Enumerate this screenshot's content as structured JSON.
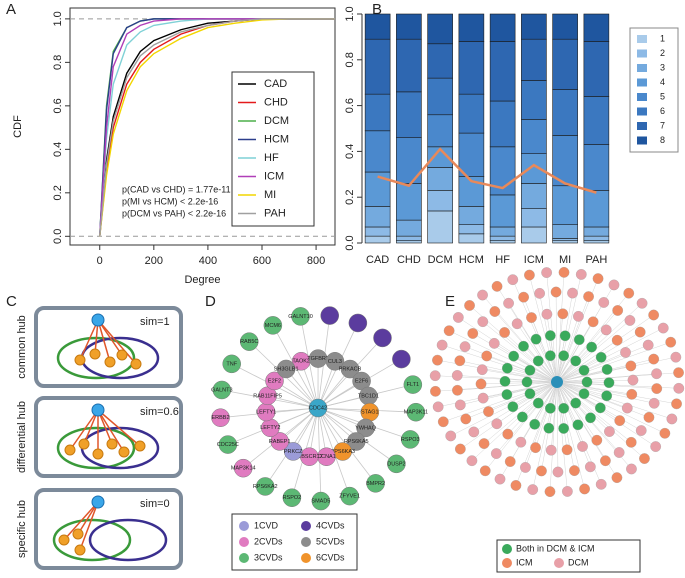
{
  "panel_labels": [
    "A",
    "B",
    "C",
    "D",
    "E"
  ],
  "chart_data": [
    {
      "type": "line",
      "xlabel": "Degree",
      "ylabel": "CDF",
      "x": [
        0,
        25,
        50,
        100,
        150,
        200,
        300,
        400,
        500,
        600,
        700,
        800,
        870
      ],
      "xlim": [
        -110,
        870
      ],
      "xticks": [
        0,
        200,
        400,
        600,
        800
      ],
      "ylim": [
        -0.04,
        1.05
      ],
      "yticks": [
        {
          "value": 0,
          "label": "0.0"
        },
        0.2,
        0.4,
        0.6,
        0.8,
        {
          "value": 1,
          "label": "1.0"
        }
      ],
      "hlines": [
        0,
        1
      ],
      "legend": "right",
      "series": [
        {
          "name": "CAD",
          "color": "#000000",
          "values": [
            0,
            0.35,
            0.55,
            0.75,
            0.85,
            0.9,
            0.95,
            0.98,
            0.99,
            1,
            1,
            1,
            1
          ]
        },
        {
          "name": "CHD",
          "color": "#e41a1c",
          "values": [
            0,
            0.3,
            0.5,
            0.7,
            0.8,
            0.86,
            0.93,
            0.97,
            0.99,
            1,
            1,
            1,
            1
          ]
        },
        {
          "name": "DCM",
          "color": "#4daf4a",
          "values": [
            0,
            0.6,
            0.85,
            0.96,
            0.99,
            1,
            1,
            1,
            1,
            1,
            1,
            1,
            1
          ]
        },
        {
          "name": "HCM",
          "color": "#2c3e8c",
          "values": [
            0,
            0.58,
            0.84,
            0.96,
            0.99,
            1,
            1,
            1,
            1,
            1,
            1,
            1,
            1
          ]
        },
        {
          "name": "HF",
          "color": "#7fd1d6",
          "values": [
            0,
            0.45,
            0.7,
            0.88,
            0.94,
            0.97,
            0.99,
            1,
            1,
            1,
            1,
            1,
            1
          ]
        },
        {
          "name": "ICM",
          "color": "#b03fb8",
          "values": [
            0,
            0.5,
            0.78,
            0.93,
            0.97,
            0.99,
            1,
            1,
            1,
            1,
            1,
            1,
            1
          ]
        },
        {
          "name": "MI",
          "color": "#f2d600",
          "values": [
            0,
            0.28,
            0.47,
            0.67,
            0.78,
            0.84,
            0.91,
            0.96,
            0.98,
            0.995,
            1,
            1,
            1
          ]
        },
        {
          "name": "PAH",
          "color": "#a0a0a0",
          "values": [
            0,
            0.33,
            0.53,
            0.73,
            0.83,
            0.88,
            0.94,
            0.97,
            0.99,
            1,
            1,
            1,
            1
          ]
        }
      ],
      "annotations": [
        "p(CAD vs CHD) = 1.77e-11",
        "p(MI vs HCM) < 2.2e-16",
        "p(DCM vs PAH) < 2.2e-16"
      ]
    },
    {
      "type": "stacked_bar",
      "categories": [
        "CAD",
        "CHD",
        "DCM",
        "HCM",
        "HF",
        "ICM",
        "MI",
        "PAH"
      ],
      "ylim": [
        0,
        1
      ],
      "yticks": [
        {
          "value": 0,
          "label": "0.0"
        },
        0.2,
        0.4,
        0.6,
        0.8,
        {
          "value": 1,
          "label": "1.0"
        }
      ],
      "legend": "right",
      "series": [
        {
          "name": "1",
          "color": "#a9cbea",
          "values": [
            0.03,
            0.01,
            0.14,
            0.04,
            0.01,
            0.07,
            0.01,
            0.01
          ]
        },
        {
          "name": "2",
          "color": "#8dbae6",
          "values": [
            0.04,
            0.02,
            0.09,
            0.04,
            0.02,
            0.08,
            0.01,
            0.02
          ]
        },
        {
          "name": "3",
          "color": "#74aade",
          "values": [
            0.09,
            0.07,
            0.1,
            0.08,
            0.04,
            0.11,
            0.06,
            0.04
          ]
        },
        {
          "name": "4",
          "color": "#5b99d6",
          "values": [
            0.15,
            0.16,
            0.09,
            0.13,
            0.14,
            0.13,
            0.17,
            0.16
          ]
        },
        {
          "name": "5",
          "color": "#4a88cc",
          "values": [
            0.18,
            0.2,
            0.14,
            0.19,
            0.21,
            0.15,
            0.22,
            0.2
          ]
        },
        {
          "name": "6",
          "color": "#3b78c0",
          "values": [
            0.16,
            0.2,
            0.16,
            0.17,
            0.2,
            0.17,
            0.2,
            0.21
          ]
        },
        {
          "name": "7",
          "color": "#2e67b1",
          "values": [
            0.24,
            0.23,
            0.15,
            0.23,
            0.26,
            0.18,
            0.22,
            0.24
          ]
        },
        {
          "name": "8",
          "color": "#1f569f",
          "values": [
            0.11,
            0.11,
            0.13,
            0.12,
            0.12,
            0.11,
            0.11,
            0.12
          ]
        }
      ],
      "line_color": "#e8895a",
      "line_values": [
        0.29,
        0.25,
        0.41,
        0.27,
        0.24,
        0.34,
        0.26,
        0.22
      ]
    }
  ],
  "diagram_c": {
    "hubs": [
      {
        "label": "common hub",
        "sim": "sim=1"
      },
      {
        "label": "differential hub",
        "sim": "sim=0.6"
      },
      {
        "label": "specific hub",
        "sim": "sim=0"
      }
    ]
  },
  "network_d": {
    "center": "CDC42",
    "groups": [
      {
        "name": "1CVD",
        "color": "#9b9bd8"
      },
      {
        "name": "2CVDs",
        "color": "#e07bc0"
      },
      {
        "name": "3CVDs",
        "color": "#5cb874"
      },
      {
        "name": "4CVDs",
        "color": "#5b3c9e"
      },
      {
        "name": "5CVDs",
        "color": "#8c8c8c"
      },
      {
        "name": "6CVDs",
        "color": "#f0932b"
      }
    ],
    "inner": [
      {
        "label": "TAOK2",
        "group": 1
      },
      {
        "label": "TGFBR2",
        "group": 4
      },
      {
        "label": "CUL3",
        "group": 4
      },
      {
        "label": "PRKACB",
        "group": 4
      },
      {
        "label": "E2F6",
        "group": 4
      },
      {
        "label": "TBC1D1",
        "group": 4
      },
      {
        "label": "STAG1",
        "group": 5
      },
      {
        "label": "YWHAQ",
        "group": 4
      },
      {
        "label": "RPS6KA5",
        "group": 4
      },
      {
        "label": "RPS6KA3",
        "group": 5
      },
      {
        "label": "CCNA1",
        "group": 1
      },
      {
        "label": "WBSCR17",
        "group": 1
      },
      {
        "label": "PRKCZ",
        "group": 0
      },
      {
        "label": "RABEP1",
        "group": 1
      },
      {
        "label": "LEFTY2",
        "group": 1
      },
      {
        "label": "LEFTY1",
        "group": 1
      },
      {
        "label": "RAB11FIP5",
        "group": 1
      },
      {
        "label": "E2F2",
        "group": 1
      },
      {
        "label": "SH3GLB1",
        "group": 4
      }
    ],
    "outer": [
      {
        "label": "GALNT10",
        "group": 2
      },
      {
        "label": null,
        "group": 3
      },
      {
        "label": null,
        "group": 3
      },
      {
        "label": null,
        "group": 3
      },
      {
        "label": null,
        "group": 3
      },
      {
        "label": "FLT1",
        "group": 2
      },
      {
        "label": "MAP3K11",
        "group": 2
      },
      {
        "label": "RSPO3",
        "group": 2
      },
      {
        "label": "DUSP2",
        "group": 2
      },
      {
        "label": "BMPR2",
        "group": 2
      },
      {
        "label": "ZFYVE1",
        "group": 2
      },
      {
        "label": "SMAD5",
        "group": 2
      },
      {
        "label": "RSPO2",
        "group": 2
      },
      {
        "label": "RPS6KA2",
        "group": 2
      },
      {
        "label": "MAP3K14",
        "group": 1
      },
      {
        "label": "CDC25C",
        "group": 2
      },
      {
        "label": "ERBB2",
        "group": 1
      },
      {
        "label": "GALNT3",
        "group": 2
      },
      {
        "label": "TNF",
        "group": 2
      },
      {
        "label": "RAB5C",
        "group": 2
      },
      {
        "label": "MCM6",
        "group": 2
      }
    ]
  },
  "network_e": {
    "groups": [
      {
        "name": "Both in DCM & ICM",
        "color": "#3aaa5c"
      },
      {
        "name": "ICM",
        "color": "#ef8a62"
      },
      {
        "name": "DCM",
        "color": "#e8a0a8"
      }
    ]
  }
}
